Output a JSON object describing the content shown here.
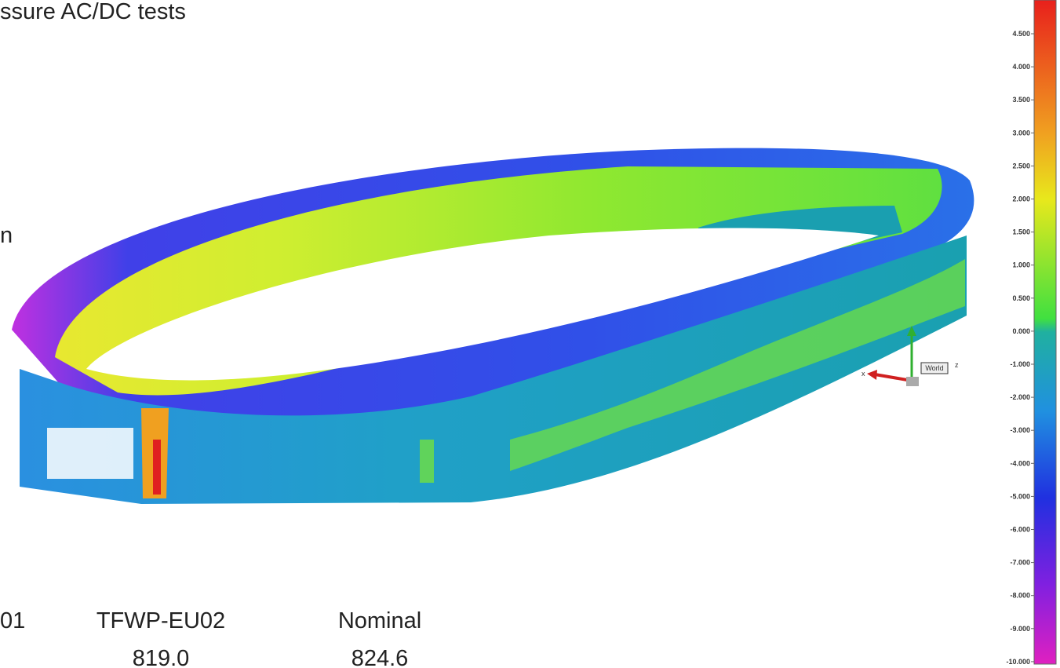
{
  "title": "ssure AC/DC tests",
  "side_label": "n",
  "table": {
    "headers": [
      "01",
      "TFWP-EU02",
      "Nominal"
    ],
    "rows": [
      [
        "819.0",
        "824.6"
      ]
    ]
  },
  "colorbar": {
    "labels": [
      "4.500",
      "4.000",
      "3.500",
      "3.000",
      "2.500",
      "2.000",
      "1.500",
      "1.000",
      "0.500",
      "0.000",
      "-1.000",
      "-2.000",
      "-3.000",
      "-4.000",
      "-5.000",
      "-6.000",
      "-7.000",
      "-8.000",
      "-9.000",
      "-10.000"
    ]
  },
  "axes": {
    "x": "x",
    "z": "z",
    "frame": "World"
  }
}
